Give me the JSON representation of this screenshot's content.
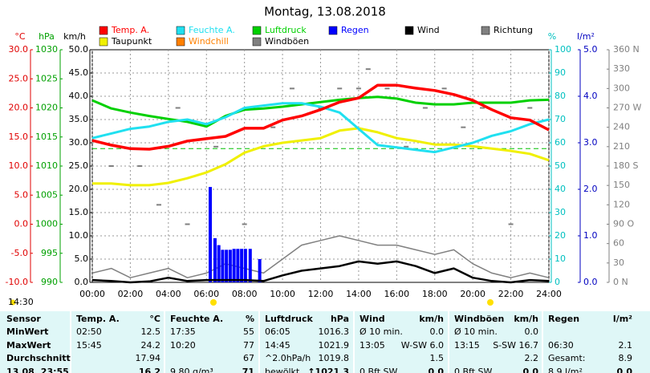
{
  "chart_data": {
    "type": "line",
    "title": "Montag, 13.08.2018",
    "xlim": [
      0,
      24
    ],
    "xticks": [
      {
        "value": 0,
        "label": "00:00"
      },
      {
        "value": 2,
        "label": "02:00"
      },
      {
        "value": 4,
        "label": "04:00"
      },
      {
        "value": 6,
        "label": "06:00"
      },
      {
        "value": 8,
        "label": "08:00"
      },
      {
        "value": 10,
        "label": "10:00"
      },
      {
        "value": 12,
        "label": "12:00"
      },
      {
        "value": 14,
        "label": "14:00"
      },
      {
        "value": 16,
        "label": "16:00"
      },
      {
        "value": 18,
        "label": "18:00"
      },
      {
        "value": 20,
        "label": "20:00"
      },
      {
        "value": 22,
        "label": "22:00"
      },
      {
        "value": 24,
        "label": "24:00"
      }
    ],
    "grid": true,
    "axes": [
      {
        "title": "°C",
        "color": "#e00000",
        "lim": [
          -10,
          30
        ],
        "ticks": [
          {
            "value": -10,
            "label": "-10.0"
          },
          {
            "value": -5,
            "label": "-5.0"
          },
          {
            "value": 0,
            "label": "0.0"
          },
          {
            "value": 5,
            "label": "5.0"
          },
          {
            "value": 10,
            "label": "10.0"
          },
          {
            "value": 15,
            "label": "15.0"
          },
          {
            "value": 20,
            "label": "20.0"
          },
          {
            "value": 25,
            "label": "25.0"
          },
          {
            "value": 30,
            "label": "30.0"
          }
        ]
      },
      {
        "title": "hPa",
        "color": "#00a000",
        "lim": [
          990,
          1030
        ],
        "ticks": [
          990,
          995,
          1000,
          1005,
          1010,
          1015,
          1020,
          1025,
          1030
        ]
      },
      {
        "title": "km/h",
        "color": "#000000",
        "lim": [
          0,
          50
        ],
        "ticks": [
          {
            "value": 0,
            "label": "0.0"
          },
          {
            "value": 5,
            "label": "5.0"
          },
          {
            "value": 10,
            "label": "10.0"
          },
          {
            "value": 15,
            "label": "15.0"
          },
          {
            "value": 20,
            "label": "20.0"
          },
          {
            "value": 25,
            "label": "25.0"
          },
          {
            "value": 30,
            "label": "30.0"
          },
          {
            "value": 35,
            "label": "35.0"
          },
          {
            "value": 40,
            "label": "40.0"
          },
          {
            "value": 45,
            "label": "45.0"
          },
          {
            "value": 50,
            "label": "50.0"
          }
        ]
      },
      {
        "title": "%",
        "color": "#00c0c0",
        "lim": [
          0,
          100
        ],
        "ticks": [
          0,
          10,
          20,
          30,
          40,
          50,
          60,
          70,
          80,
          90,
          100
        ]
      },
      {
        "title": "l/m²",
        "color": "#0000c0",
        "lim": [
          0,
          5
        ],
        "ticks": [
          {
            "value": 0,
            "label": "0.0"
          },
          {
            "value": 1,
            "label": "1.0"
          },
          {
            "value": 2,
            "label": "2.0"
          },
          {
            "value": 3,
            "label": "3.0"
          },
          {
            "value": 4,
            "label": "4.0"
          },
          {
            "value": 5,
            "label": "5.0"
          }
        ]
      },
      {
        "color": "#808080",
        "lim": [
          0,
          360
        ],
        "ticks": [
          {
            "value": 0,
            "label": "0 N"
          },
          30,
          60,
          {
            "value": 90,
            "label": "90 O"
          },
          120,
          150,
          {
            "value": 180,
            "label": "180 S"
          },
          210,
          240,
          {
            "value": 270,
            "label": "270 W"
          },
          300,
          330,
          {
            "value": 360,
            "label": "360 N"
          }
        ]
      }
    ],
    "reference_line": {
      "axis": 1,
      "value": 1013,
      "color": "#00c000"
    },
    "x": [
      0,
      1,
      2,
      3,
      4,
      5,
      6,
      7,
      8,
      9,
      10,
      11,
      12,
      13,
      14,
      15,
      16,
      17,
      18,
      19,
      20,
      21,
      22,
      23,
      24
    ],
    "series": [
      {
        "name": "Temp. A.",
        "color": "#ff0000",
        "axis": 0,
        "values": [
          14.4,
          13.6,
          13.0,
          12.9,
          13.4,
          14.3,
          14.7,
          15.1,
          16.5,
          16.5,
          17.9,
          18.6,
          19.7,
          21.0,
          21.7,
          23.9,
          23.9,
          23.4,
          23.0,
          22.3,
          21.3,
          19.7,
          18.3,
          17.9,
          16.2
        ]
      },
      {
        "name": "Feuchte A.",
        "color": "#20e0f0",
        "axis": 3,
        "values": [
          62,
          64,
          66,
          67,
          69,
          70,
          68,
          71,
          75,
          76,
          77,
          77,
          75.5,
          73,
          66,
          59,
          58,
          57,
          56,
          58,
          60,
          63,
          65,
          68,
          70
        ]
      },
      {
        "name": "Luftdruck",
        "color": "#00d000",
        "axis": 1,
        "values": [
          1021.3,
          1019.9,
          1019.2,
          1018.6,
          1018.1,
          1017.6,
          1016.8,
          1018.6,
          1019.7,
          1019.9,
          1020.2,
          1020.6,
          1021.0,
          1021.4,
          1021.7,
          1021.9,
          1021.6,
          1020.9,
          1020.6,
          1020.6,
          1020.9,
          1020.9,
          1020.9,
          1021.3,
          1021.4
        ]
      },
      {
        "name": "Regen",
        "color": "#0000ff",
        "axis": 4,
        "kind": "bar",
        "x": [
          6.2,
          6.45,
          6.65,
          6.85,
          7.05,
          7.25,
          7.45,
          7.65,
          7.85,
          8.05,
          8.3,
          8.8
        ],
        "values": [
          2.05,
          0.95,
          0.8,
          0.7,
          0.7,
          0.7,
          0.72,
          0.72,
          0.72,
          0.72,
          0.72,
          0.5
        ]
      },
      {
        "name": "Wind",
        "color": "#000000",
        "axis": 2,
        "values": [
          0.5,
          0.3,
          0,
          0.2,
          1,
          0.3,
          0.5,
          0.5,
          0.5,
          0.3,
          1.5,
          2.5,
          3,
          3.5,
          4.5,
          4,
          4.5,
          3.5,
          2,
          3,
          1,
          0.3,
          0,
          0.5,
          0.3
        ]
      },
      {
        "name": "Richtung",
        "color": "#808080",
        "axis": 5,
        "kind": "dots",
        "x": [
          1,
          2.5,
          3.5,
          4.5,
          5,
          6.5,
          8,
          9.5,
          10.5,
          12,
          13,
          14,
          14.5,
          15.5,
          16.5,
          17.5,
          18.5,
          19.5,
          20.5,
          22,
          23
        ],
        "values": [
          180,
          180,
          120,
          270,
          90,
          210,
          90,
          240,
          300,
          270,
          300,
          300,
          330,
          300,
          210,
          270,
          300,
          240,
          270,
          90,
          270
        ]
      },
      {
        "name": "Taupunkt",
        "color": "#f0f000",
        "axis": 0,
        "values": [
          7.0,
          7.0,
          6.7,
          6.7,
          7.1,
          7.9,
          8.9,
          10.3,
          12.3,
          13.4,
          14.0,
          14.4,
          14.8,
          16.1,
          16.5,
          15.8,
          14.8,
          14.3,
          13.7,
          13.7,
          13.4,
          13.0,
          12.6,
          12.1,
          11.0
        ]
      },
      {
        "name": "Windchill",
        "color": "#ff8000",
        "axis": 0,
        "kind": "legend-only"
      },
      {
        "name": "Windböen",
        "color": "#808080",
        "axis": 2,
        "values": [
          2,
          3,
          1,
          2,
          3,
          1,
          2,
          4,
          3,
          2,
          5,
          8,
          9,
          10,
          9,
          8,
          8,
          7,
          6,
          7,
          4,
          2,
          1,
          2,
          1
        ]
      }
    ],
    "marker_label": "14:30"
  },
  "table": {
    "header": [
      "Sensor",
      "Temp. A.",
      "°C",
      "Feuchte A.",
      "%",
      "Luftdruck",
      "hPa",
      "Wind",
      "km/h",
      "Windböen",
      "km/h",
      "Regen",
      "l/m²"
    ],
    "rows": [
      [
        "MinWert",
        "02:50",
        "12.5",
        "17:35",
        "55",
        "06:05",
        "1016.3",
        "Ø 10 min.",
        "0.0",
        "Ø 10 min.",
        "0.0",
        null,
        null
      ],
      [
        "MaxWert",
        "15:45",
        "24.2",
        "10:20",
        "77",
        "14:45",
        "1021.9",
        "13:05",
        "W-SW 6.0",
        "13:15",
        "S-SW 16.7",
        "06:30",
        "2.1"
      ],
      [
        "Durchschnitt",
        null,
        "17.94",
        null,
        "67",
        "^2.0hPa/h",
        "1019.8",
        null,
        "1.5",
        null,
        "2.2",
        "Gesamt:",
        "8.9"
      ],
      [
        "13.08. 23:55",
        null,
        "16.2",
        "9.80 g/m³",
        "71",
        "bewölkt",
        "↑1021.3",
        "0 Bft SW",
        "0.0",
        "0 Bft SW",
        "0.0",
        "8.9 l/m²",
        "0.0"
      ]
    ]
  }
}
